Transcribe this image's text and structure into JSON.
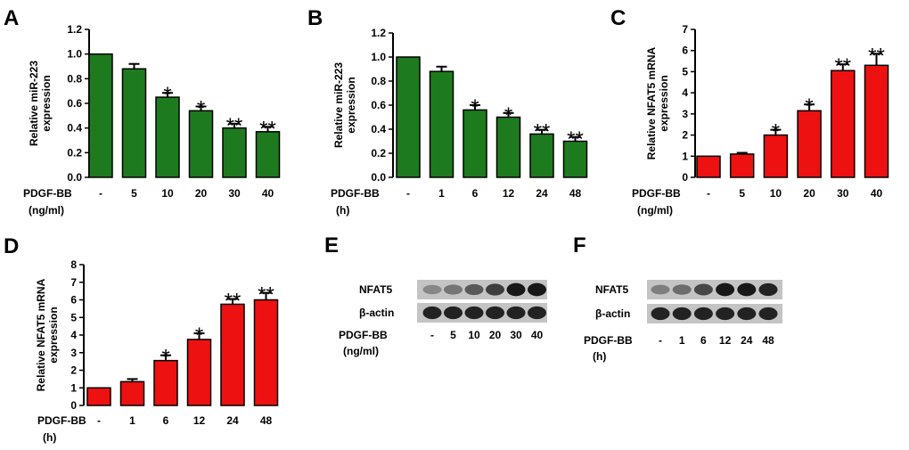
{
  "panels": [
    {
      "letter": "A",
      "chart_data": {
        "type": "bar",
        "color": "#1e7a1e",
        "ylabel": [
          "Relative miR-223",
          "expression"
        ],
        "ylim": [
          0,
          1.2
        ],
        "yticks": [
          "0.0",
          "0.2",
          "0.4",
          "0.6",
          "0.8",
          "1.0",
          "1.2"
        ],
        "treatment": "PDGF-BB",
        "unit": "(ng/ml)",
        "categories": [
          "-",
          "5",
          "10",
          "20",
          "30",
          "40"
        ],
        "values": [
          1.0,
          0.88,
          0.65,
          0.54,
          0.4,
          0.37
        ],
        "errors": [
          0,
          0.04,
          0.035,
          0.035,
          0.035,
          0.04
        ],
        "significance": [
          "",
          "",
          "*",
          "*",
          "**",
          "**"
        ]
      }
    },
    {
      "letter": "B",
      "chart_data": {
        "type": "bar",
        "color": "#1e7a1e",
        "ylabel": [
          "Relative miR-223",
          "expression"
        ],
        "ylim": [
          0,
          1.2
        ],
        "yticks": [
          "0.0",
          "0.2",
          "0.4",
          "0.6",
          "0.8",
          "1.0",
          "1.2"
        ],
        "treatment": "PDGF-BB",
        "unit": "(h)",
        "categories": [
          "-",
          "1",
          "6",
          "12",
          "24",
          "48"
        ],
        "values": [
          1.0,
          0.88,
          0.56,
          0.5,
          0.36,
          0.3
        ],
        "errors": [
          0,
          0.04,
          0.04,
          0.035,
          0.035,
          0.035
        ],
        "significance": [
          "",
          "",
          "*",
          "*",
          "**",
          "**"
        ]
      }
    },
    {
      "letter": "C",
      "chart_data": {
        "type": "bar",
        "color": "#ee1111",
        "ylabel": [
          "Relative NFAT5 mRNA",
          "expression"
        ],
        "ylim": [
          0,
          7
        ],
        "yticks": [
          "0",
          "1",
          "2",
          "3",
          "4",
          "5",
          "6",
          "7"
        ],
        "treatment": "PDGF-BB",
        "unit": "(ng/ml)",
        "categories": [
          "-",
          "5",
          "10",
          "20",
          "30",
          "40"
        ],
        "values": [
          1.0,
          1.1,
          2.0,
          3.15,
          5.05,
          5.3
        ],
        "errors": [
          0,
          0.06,
          0.25,
          0.3,
          0.3,
          0.55
        ],
        "significance": [
          "",
          "",
          "*",
          "*",
          "**",
          "**"
        ]
      }
    },
    {
      "letter": "D",
      "chart_data": {
        "type": "bar",
        "color": "#ee1111",
        "ylabel": [
          "Relative NFAT5 mRNA",
          "expression"
        ],
        "ylim": [
          0,
          8
        ],
        "yticks": [
          "0",
          "1",
          "2",
          "3",
          "4",
          "5",
          "6",
          "7",
          "8"
        ],
        "treatment": "PDGF-BB",
        "unit": "(h)",
        "categories": [
          "-",
          "1",
          "6",
          "12",
          "24",
          "48"
        ],
        "values": [
          1.0,
          1.35,
          2.55,
          3.75,
          5.75,
          6.0
        ],
        "errors": [
          0,
          0.15,
          0.3,
          0.35,
          0.3,
          0.4
        ],
        "significance": [
          "",
          "",
          "*",
          "*",
          "**",
          "**"
        ]
      }
    }
  ],
  "blots": [
    {
      "letter": "E",
      "rows": [
        "NFAT5",
        "β-actin"
      ],
      "treatment": "PDGF-BB",
      "unit": "(ng/ml)",
      "lanes": [
        "-",
        "5",
        "10",
        "20",
        "30",
        "40"
      ],
      "nfat5_intensity": [
        0.35,
        0.45,
        0.6,
        0.75,
        0.95,
        0.95
      ],
      "actin_intensity": [
        0.9,
        0.9,
        0.9,
        0.9,
        0.9,
        0.9
      ]
    },
    {
      "letter": "F",
      "rows": [
        "NFAT5",
        "β-actin"
      ],
      "treatment": "PDGF-BB",
      "unit": "(h)",
      "lanes": [
        "-",
        "1",
        "6",
        "12",
        "24",
        "48"
      ],
      "nfat5_intensity": [
        0.4,
        0.5,
        0.7,
        0.95,
        0.95,
        0.9
      ],
      "actin_intensity": [
        0.9,
        0.9,
        0.9,
        0.9,
        0.9,
        0.9
      ]
    }
  ]
}
